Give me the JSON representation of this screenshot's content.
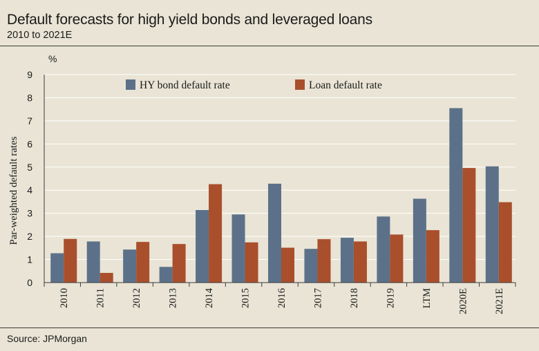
{
  "header": {
    "title": "Default forecasts for high yield bonds and leveraged loans",
    "subtitle": "2010 to 2021E"
  },
  "footer": {
    "source": "Source: JPMorgan"
  },
  "chart_data": {
    "type": "bar",
    "title": "Default forecasts for high yield bonds and leveraged loans",
    "subtitle": "2010 to 2021E",
    "ylabel": "Par-weighted default rates",
    "yunit": "%",
    "ylim": [
      0,
      9
    ],
    "yticks": [
      0,
      1,
      2,
      3,
      4,
      5,
      6,
      7,
      8,
      9
    ],
    "grid": true,
    "legend": "top",
    "categories": [
      "2010",
      "2011",
      "2012",
      "2013",
      "2014",
      "2015",
      "2016",
      "2017",
      "2018",
      "2019",
      "LTM",
      "2020E",
      "2021E"
    ],
    "series": [
      {
        "name": "HY bond default rate",
        "color": "#5c7189",
        "values": [
          1.27,
          1.78,
          1.43,
          0.68,
          3.14,
          2.95,
          4.28,
          1.46,
          1.94,
          2.86,
          3.63,
          7.55,
          5.03
        ]
      },
      {
        "name": "Loan default rate",
        "color": "#a94f2c",
        "values": [
          1.89,
          0.42,
          1.76,
          1.67,
          4.26,
          1.74,
          1.51,
          1.88,
          1.78,
          2.08,
          2.27,
          4.96,
          3.48
        ]
      }
    ]
  }
}
